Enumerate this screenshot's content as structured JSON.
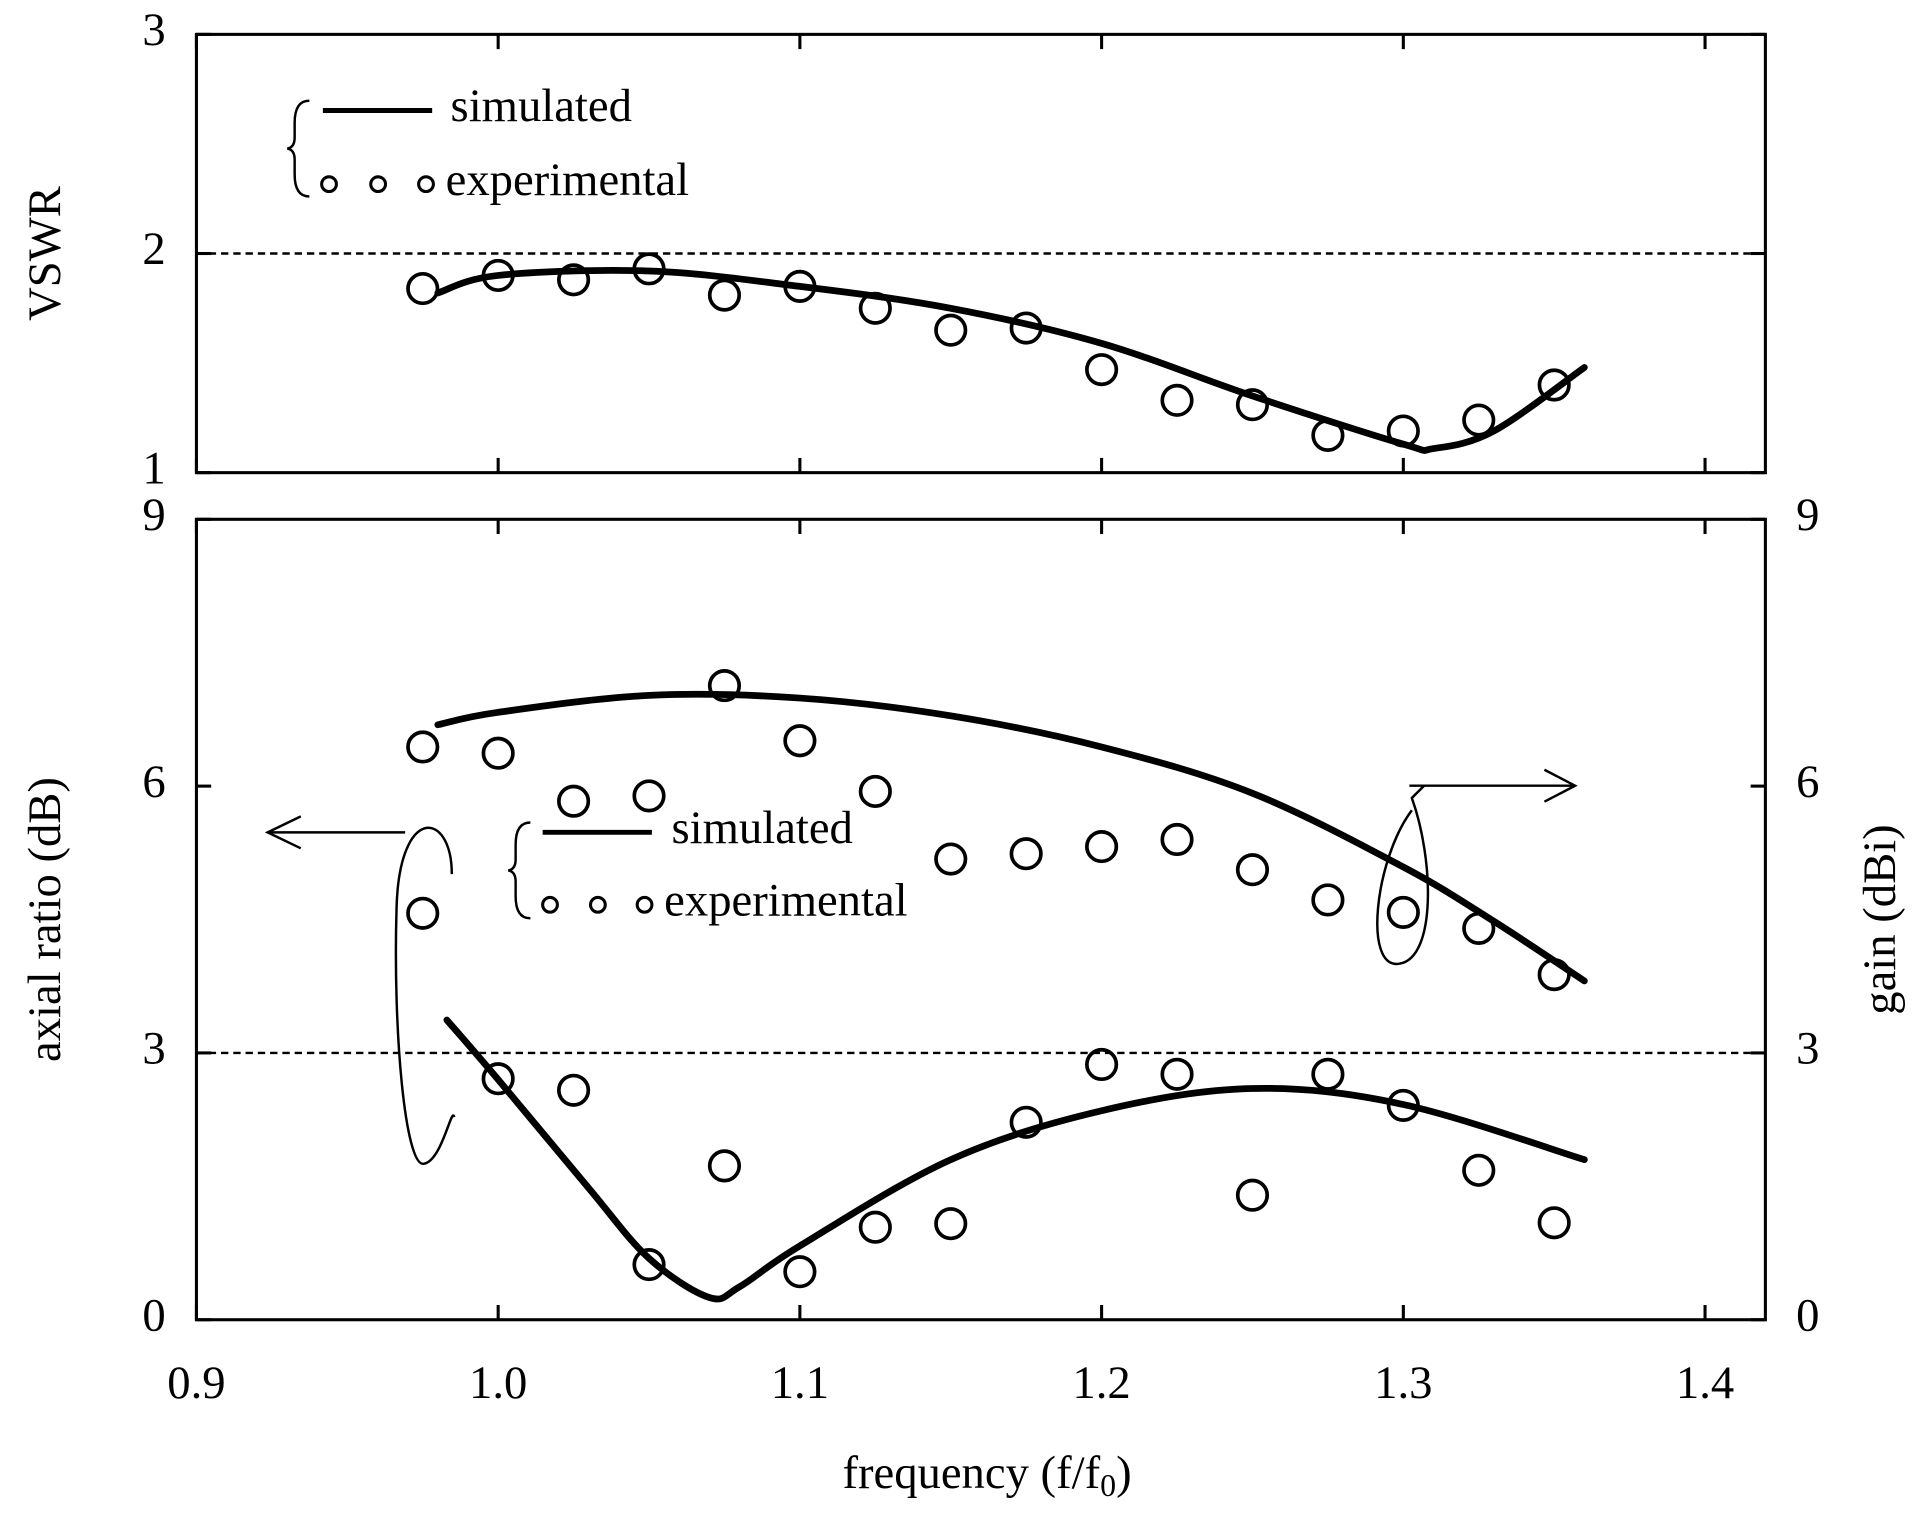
{
  "chart_data": [
    {
      "type": "line",
      "ylabel": "VSWR",
      "xlim": [
        0.9,
        1.42
      ],
      "xticks": [
        0.9,
        1,
        1.1,
        1.2,
        1.3,
        1.4
      ],
      "ylim": [
        1,
        3
      ],
      "yticks": [
        1,
        2,
        3
      ],
      "hline": 2,
      "series": [
        {
          "name": "simulated",
          "style": "line",
          "color": "#000000",
          "x": [
            0.98,
            1.0,
            1.05,
            1.1,
            1.15,
            1.2,
            1.25,
            1.3,
            1.31,
            1.33,
            1.36
          ],
          "values": [
            1.82,
            1.9,
            1.92,
            1.85,
            1.75,
            1.59,
            1.35,
            1.13,
            1.11,
            1.19,
            1.48
          ]
        },
        {
          "name": "experimental",
          "style": "marker",
          "color": "#000000",
          "x": [
            0.975,
            1.0,
            1.025,
            1.05,
            1.075,
            1.1,
            1.125,
            1.15,
            1.175,
            1.2,
            1.225,
            1.25,
            1.275,
            1.3,
            1.325,
            1.35
          ],
          "values": [
            1.84,
            1.9,
            1.88,
            1.93,
            1.81,
            1.85,
            1.75,
            1.65,
            1.66,
            1.47,
            1.33,
            1.31,
            1.17,
            1.19,
            1.24,
            1.4
          ]
        }
      ]
    },
    {
      "type": "line",
      "ylabel": "axial ratio (dB)",
      "y2label": "gain (dBi)",
      "xlabel": {
        "text": "frequency (f/f",
        "subscript": "0",
        "suffix": ")"
      },
      "xlim": [
        0.9,
        1.42
      ],
      "xticks": [
        {
          "value": 0.9,
          "label": "0.9"
        },
        {
          "value": 1,
          "label": "1.0"
        },
        {
          "value": 1.1,
          "label": "1.1"
        },
        {
          "value": 1.2,
          "label": "1.2"
        },
        {
          "value": 1.3,
          "label": "1.3"
        },
        {
          "value": 1.4,
          "label": "1.4"
        }
      ],
      "ylim": [
        0,
        9
      ],
      "yticks": [
        0,
        3,
        6,
        9
      ],
      "y2lim": [
        0,
        9
      ],
      "y2ticks": [
        0,
        3,
        6,
        9
      ],
      "hline": 3,
      "series": [
        {
          "name": "simulated",
          "style": "line",
          "color": "#000000",
          "x": [
            0.983,
            1.0,
            1.03,
            1.05,
            1.07,
            1.08,
            1.1,
            1.15,
            1.2,
            1.25,
            1.3,
            1.36
          ],
          "values": [
            3.37,
            2.7,
            1.48,
            0.69,
            0.25,
            0.37,
            0.83,
            1.8,
            2.35,
            2.6,
            2.42,
            1.8
          ]
        },
        {
          "name": "experimental",
          "style": "marker",
          "color": "#000000",
          "x": [
            0.975,
            1.0,
            1.025,
            1.05,
            1.075,
            1.1,
            1.125,
            1.15,
            1.175,
            1.2,
            1.225,
            1.25,
            1.275,
            1.3,
            1.325,
            1.35
          ],
          "values": [
            4.57,
            2.71,
            2.58,
            0.62,
            1.73,
            0.54,
            1.04,
            1.08,
            2.22,
            2.87,
            2.76,
            1.4,
            2.76,
            2.41,
            1.68,
            1.09
          ]
        },
        {
          "style": "line",
          "color": "#000000",
          "axis": "y2",
          "x": [
            0.98,
            1.0,
            1.05,
            1.1,
            1.15,
            1.2,
            1.25,
            1.3,
            1.33,
            1.36
          ],
          "values": [
            6.69,
            6.83,
            7.02,
            6.99,
            6.79,
            6.44,
            5.92,
            5.09,
            4.48,
            3.81
          ]
        },
        {
          "style": "marker",
          "color": "#000000",
          "axis": "y2",
          "x": [
            0.975,
            1.0,
            1.025,
            1.05,
            1.075,
            1.1,
            1.125,
            1.15,
            1.175,
            1.2,
            1.225,
            1.25,
            1.275,
            1.3,
            1.325,
            1.35
          ],
          "values": [
            6.44,
            6.37,
            5.83,
            5.89,
            7.13,
            6.51,
            5.94,
            5.18,
            5.24,
            5.32,
            5.4,
            5.06,
            4.72,
            4.58,
            4.4,
            3.88
          ]
        }
      ]
    }
  ]
}
